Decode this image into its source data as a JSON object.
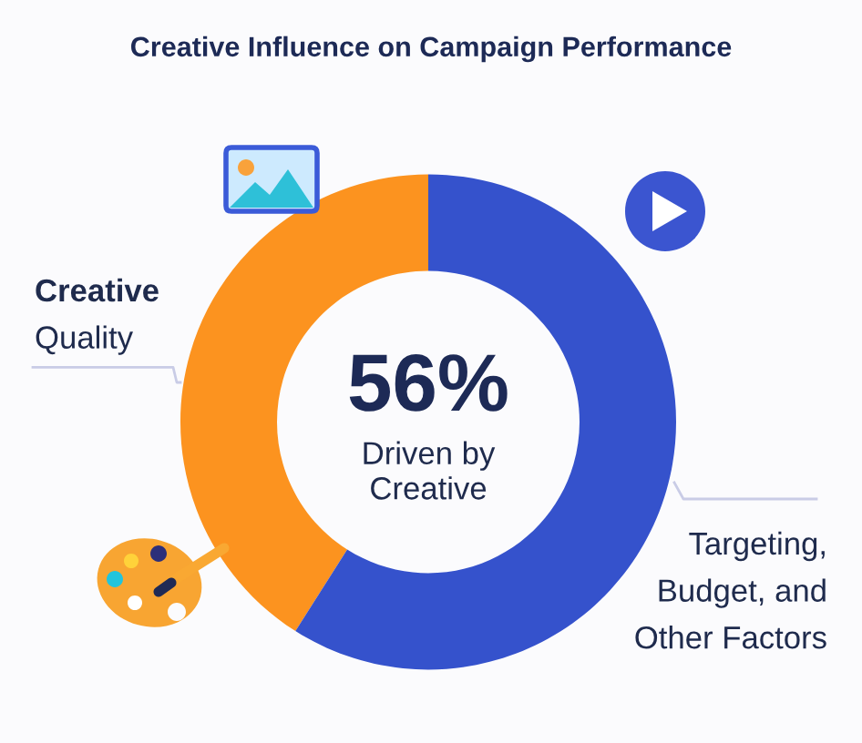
{
  "chart_data": {
    "type": "donut",
    "title": "Creative Influence on Campaign Performance",
    "categories": [
      "Creative\nQuality",
      "Targeting,\nBudget, and\nOther Factors"
    ],
    "values": [
      41,
      59
    ],
    "colors": [
      "#fc931f",
      "#3552cc"
    ],
    "annotations": [
      "56%",
      "Driven by\nCreative"
    ]
  }
}
